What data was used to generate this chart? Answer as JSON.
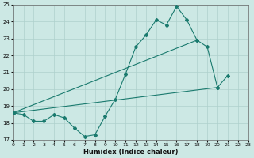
{
  "xlabel": "Humidex (Indice chaleur)",
  "bg_color": "#cce8e4",
  "grid_color": "#aed0cc",
  "line_color": "#1a7a6e",
  "x_values": [
    0,
    1,
    2,
    3,
    4,
    5,
    6,
    7,
    8,
    9,
    10,
    11,
    12,
    13,
    14,
    15,
    16,
    17,
    18,
    19,
    20,
    21,
    22,
    23
  ],
  "line1": [
    18.6,
    18.5,
    18.1,
    18.1,
    18.5,
    18.3,
    17.7,
    17.2,
    17.3,
    18.4,
    19.4,
    20.9,
    22.5,
    23.2,
    24.1,
    23.8,
    24.9,
    24.1,
    22.9,
    22.5,
    20.1,
    20.8,
    null,
    null
  ],
  "line2": [
    18.6,
    null,
    null,
    null,
    null,
    null,
    null,
    null,
    null,
    null,
    null,
    null,
    null,
    null,
    null,
    null,
    null,
    null,
    null,
    null,
    20.1,
    null,
    null,
    null
  ],
  "line3": [
    18.6,
    null,
    null,
    null,
    null,
    null,
    null,
    null,
    null,
    null,
    null,
    null,
    null,
    null,
    null,
    null,
    null,
    null,
    22.9,
    null,
    null,
    null,
    null,
    null
  ],
  "ylim": [
    17.0,
    25.0
  ],
  "xlim": [
    0,
    23
  ],
  "yticks": [
    17,
    18,
    19,
    20,
    21,
    22,
    23,
    24,
    25
  ],
  "xticks": [
    0,
    1,
    2,
    3,
    4,
    5,
    6,
    7,
    8,
    9,
    10,
    11,
    12,
    13,
    14,
    15,
    16,
    17,
    18,
    19,
    20,
    21,
    22,
    23
  ]
}
